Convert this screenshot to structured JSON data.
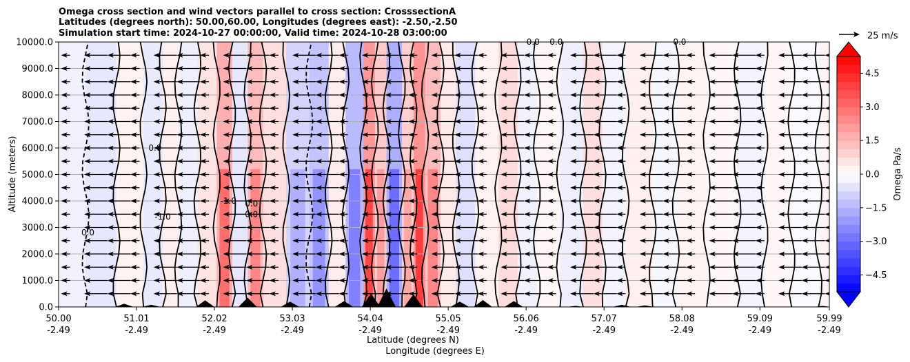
{
  "chart_data": {
    "type": "contour-cross-section",
    "title_lines": [
      "Omega cross section and wind vectors parallel to cross section: CrosssectionA",
      "Latitudes (degrees north): 50.00,60.00, Longitudes (degrees east): -2.50,-2.50",
      "Simulation start time: 2024-10-27 00:00:00, Valid time: 2024-10-28 03:00:00"
    ],
    "ylabel": "Altitude (meters)",
    "xlabel_lines": [
      "Latitude (degrees N)",
      "Longitude (degrees E)"
    ],
    "x_range": [
      50.0,
      59.99
    ],
    "ylim": [
      0,
      10000
    ],
    "grid": "horizontal",
    "x_ticks": [
      {
        "lat": "50.00",
        "lon": "-2.49",
        "value": 50.0
      },
      {
        "lat": "51.01",
        "lon": "-2.49",
        "value": 51.01
      },
      {
        "lat": "52.02",
        "lon": "-2.49",
        "value": 52.02
      },
      {
        "lat": "53.03",
        "lon": "-2.49",
        "value": 53.03
      },
      {
        "lat": "54.04",
        "lon": "-2.49",
        "value": 54.04
      },
      {
        "lat": "55.05",
        "lon": "-2.49",
        "value": 55.05
      },
      {
        "lat": "56.06",
        "lon": "-2.49",
        "value": 56.06
      },
      {
        "lat": "57.07",
        "lon": "-2.49",
        "value": 57.07
      },
      {
        "lat": "58.08",
        "lon": "-2.49",
        "value": 58.08
      },
      {
        "lat": "59.09",
        "lon": "-2.49",
        "value": 59.09
      },
      {
        "lat": "59.99",
        "lon": "-2.49",
        "value": 59.99
      }
    ],
    "y_ticks": [
      {
        "label": "0.0",
        "value": 0
      },
      {
        "label": "1000.0",
        "value": 1000
      },
      {
        "label": "2000.0",
        "value": 2000
      },
      {
        "label": "3000.0",
        "value": 3000
      },
      {
        "label": "4000.0",
        "value": 4000
      },
      {
        "label": "5000.0",
        "value": 5000
      },
      {
        "label": "6000.0",
        "value": 6000
      },
      {
        "label": "7000.0",
        "value": 7000
      },
      {
        "label": "8000.0",
        "value": 8000
      },
      {
        "label": "9000.0",
        "value": 9000
      },
      {
        "label": "10000.0",
        "value": 10000
      }
    ],
    "colorbar": {
      "label": "Omega Pa/s",
      "range": [
        -5.25,
        5.25
      ],
      "colormap": "bwr",
      "extend": "both",
      "ticks": [
        {
          "label": "4.5",
          "value": 4.5
        },
        {
          "label": "3.0",
          "value": 3.0
        },
        {
          "label": "1.5",
          "value": 1.5
        },
        {
          "label": "0.0",
          "value": 0.0
        },
        {
          "label": "−1.5",
          "value": -1.5
        },
        {
          "label": "−3.0",
          "value": -3.0
        },
        {
          "label": "−4.5",
          "value": -4.5
        }
      ]
    },
    "vector_key": {
      "label": "25 m/s",
      "speed": 25
    },
    "wind": {
      "direction": "toward decreasing latitude",
      "typical_speed_ms": 22
    },
    "contour_levels": [
      -1.0,
      0.0,
      1.0,
      2.0,
      3.0
    ],
    "omega_bands": [
      {
        "lat": 50.0,
        "omega": -0.5
      },
      {
        "lat": 50.35,
        "omega": -0.9
      },
      {
        "lat": 50.75,
        "omega": 0.5
      },
      {
        "lat": 51.1,
        "omega": -0.8
      },
      {
        "lat": 51.35,
        "omega": 0.6
      },
      {
        "lat": 51.55,
        "omega": -0.6
      },
      {
        "lat": 51.8,
        "omega": 1.0
      },
      {
        "lat": 52.05,
        "omega": 3.0
      },
      {
        "lat": 52.25,
        "omega": -0.9
      },
      {
        "lat": 52.45,
        "omega": 2.5
      },
      {
        "lat": 52.65,
        "omega": 1.2
      },
      {
        "lat": 52.95,
        "omega": -1.6
      },
      {
        "lat": 53.25,
        "omega": -2.2
      },
      {
        "lat": 53.5,
        "omega": 0.7
      },
      {
        "lat": 53.72,
        "omega": -2.6
      },
      {
        "lat": 53.95,
        "omega": 3.8
      },
      {
        "lat": 54.1,
        "omega": 2.0
      },
      {
        "lat": 54.25,
        "omega": -3.0
      },
      {
        "lat": 54.45,
        "omega": 1.8
      },
      {
        "lat": 54.6,
        "omega": 4.0
      },
      {
        "lat": 54.75,
        "omega": 2.5
      },
      {
        "lat": 54.95,
        "omega": 0.8
      },
      {
        "lat": 55.15,
        "omega": -1.2
      },
      {
        "lat": 55.4,
        "omega": 0.5
      },
      {
        "lat": 55.7,
        "omega": 1.3
      },
      {
        "lat": 55.95,
        "omega": -0.5
      },
      {
        "lat": 56.2,
        "omega": 0.3
      },
      {
        "lat": 56.5,
        "omega": -0.6
      },
      {
        "lat": 56.8,
        "omega": 1.2
      },
      {
        "lat": 57.05,
        "omega": -0.4
      },
      {
        "lat": 57.35,
        "omega": 0.6
      },
      {
        "lat": 57.7,
        "omega": -0.3
      },
      {
        "lat": 58.0,
        "omega": 0.4
      },
      {
        "lat": 58.4,
        "omega": 0.3
      },
      {
        "lat": 58.8,
        "omega": -0.4
      },
      {
        "lat": 59.15,
        "omega": 0.3
      },
      {
        "lat": 59.5,
        "omega": -0.2
      },
      {
        "lat": 59.85,
        "omega": 0.4
      }
    ],
    "terrain_peaks_m": [
      {
        "lat": 50.85,
        "height": 120
      },
      {
        "lat": 51.2,
        "height": 80
      },
      {
        "lat": 51.9,
        "height": 250
      },
      {
        "lat": 52.45,
        "height": 350
      },
      {
        "lat": 53.0,
        "height": 200
      },
      {
        "lat": 53.7,
        "height": 220
      },
      {
        "lat": 54.05,
        "height": 500
      },
      {
        "lat": 54.25,
        "height": 700
      },
      {
        "lat": 54.6,
        "height": 480
      },
      {
        "lat": 55.2,
        "height": 200
      },
      {
        "lat": 55.5,
        "height": 260
      },
      {
        "lat": 55.9,
        "height": 220
      },
      {
        "lat": 56.7,
        "height": 40
      },
      {
        "lat": 57.3,
        "height": 80
      },
      {
        "lat": 57.6,
        "height": 60
      },
      {
        "lat": 59.9,
        "height": 40
      }
    ],
    "contour_labels": [
      {
        "text": "0.0",
        "lat": 50.38,
        "alt": 2800
      },
      {
        "text": "0.0",
        "lat": 51.25,
        "alt": 6000
      },
      {
        "text": "-1.0",
        "lat": 51.35,
        "alt": 3400
      },
      {
        "text": "-1.0",
        "lat": 52.2,
        "alt": 4000
      },
      {
        "text": "0.0",
        "lat": 52.5,
        "alt": 3900
      },
      {
        "text": "0.0",
        "lat": 52.5,
        "alt": 3500
      },
      {
        "text": "0.0",
        "lat": 56.15,
        "alt": 10000
      },
      {
        "text": "0.0",
        "lat": 56.45,
        "alt": 10000
      },
      {
        "text": "0.0",
        "lat": 58.05,
        "alt": 10000
      }
    ]
  }
}
